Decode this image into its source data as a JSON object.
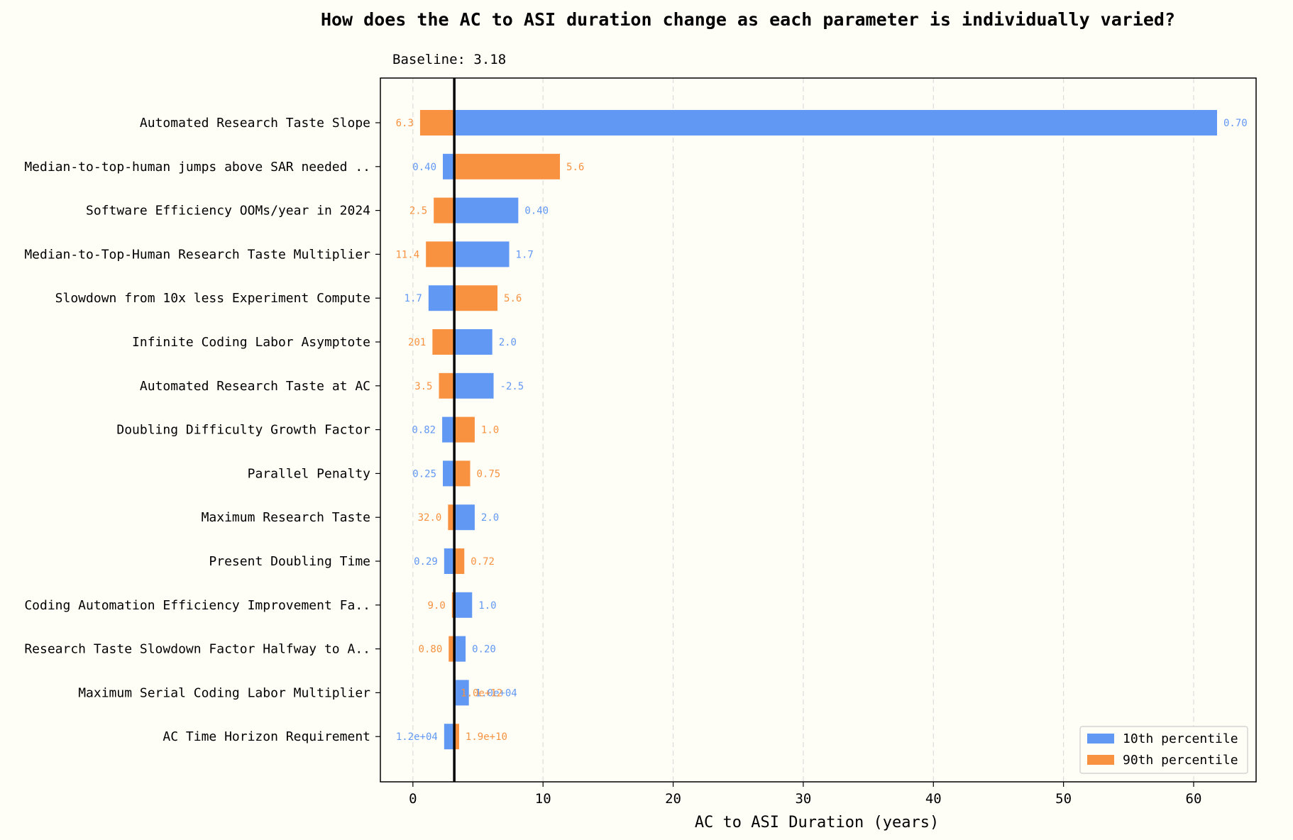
{
  "chart_data": {
    "type": "bar",
    "orientation": "horizontal",
    "title": "How does the AC to ASI duration change as each parameter is individually varied?",
    "subtitle": "Baseline: 3.18",
    "baseline": 3.18,
    "xlabel": "AC to ASI Duration (years)",
    "ylabel": "",
    "xlim": [
      -2.5,
      64.8
    ],
    "xticks": [
      0,
      10,
      20,
      30,
      40,
      50,
      60
    ],
    "grid": "x-dashed",
    "legend_position": "lower-right",
    "colors": {
      "p10": "#6198f4",
      "p90": "#f89240",
      "baseline": "#000000",
      "background": "#fffef6"
    },
    "legend": [
      {
        "key": "p10",
        "label": "10th percentile"
      },
      {
        "key": "p90",
        "label": "90th percentile"
      }
    ],
    "parameters": [
      {
        "name": "Automated Research Taste Slope",
        "p10": {
          "value": 61.8,
          "label": "0.70"
        },
        "p90": {
          "value": 0.55,
          "label": "6.3"
        }
      },
      {
        "name": "Median-to-top-human jumps above SAR needed ..",
        "p10": {
          "value": 2.3,
          "label": "0.40"
        },
        "p90": {
          "value": 11.3,
          "label": "5.6"
        }
      },
      {
        "name": "Software Efficiency OOMs/year in 2024",
        "p10": {
          "value": 8.1,
          "label": "0.40"
        },
        "p90": {
          "value": 1.6,
          "label": "2.5"
        }
      },
      {
        "name": "Median-to-Top-Human Research Taste Multiplier",
        "p10": {
          "value": 7.4,
          "label": "1.7"
        },
        "p90": {
          "value": 1.0,
          "label": "11.4"
        }
      },
      {
        "name": "Slowdown from 10x less Experiment Compute",
        "p10": {
          "value": 1.2,
          "label": "1.7"
        },
        "p90": {
          "value": 6.5,
          "label": "5.6"
        }
      },
      {
        "name": "Infinite Coding Labor Asymptote",
        "p10": {
          "value": 6.1,
          "label": "2.0"
        },
        "p90": {
          "value": 1.5,
          "label": "201"
        }
      },
      {
        "name": "Automated Research Taste at AC",
        "p10": {
          "value": 6.2,
          "label": "-2.5"
        },
        "p90": {
          "value": 2.0,
          "label": "3.5"
        }
      },
      {
        "name": "Doubling Difficulty Growth Factor",
        "p10": {
          "value": 2.25,
          "label": "0.82"
        },
        "p90": {
          "value": 4.75,
          "label": "1.0"
        }
      },
      {
        "name": "Parallel Penalty",
        "p10": {
          "value": 2.3,
          "label": "0.25"
        },
        "p90": {
          "value": 4.4,
          "label": "0.75"
        }
      },
      {
        "name": "Maximum Research Taste",
        "p10": {
          "value": 4.75,
          "label": "2.0"
        },
        "p90": {
          "value": 2.7,
          "label": "32.0"
        }
      },
      {
        "name": "Present Doubling Time",
        "p10": {
          "value": 2.4,
          "label": "0.29"
        },
        "p90": {
          "value": 3.95,
          "label": "0.72"
        }
      },
      {
        "name": "Coding Automation Efficiency Improvement Fa..",
        "p10": {
          "value": 4.55,
          "label": "1.0"
        },
        "p90": {
          "value": 3.0,
          "label": "9.0"
        }
      },
      {
        "name": "Research Taste Slowdown Factor Halfway to A..",
        "p10": {
          "value": 4.05,
          "label": "0.20"
        },
        "p90": {
          "value": 2.75,
          "label": "0.80"
        }
      },
      {
        "name": "Maximum Serial Coding Labor Multiplier",
        "p10": {
          "value": 4.3,
          "label": "1.0e+04"
        },
        "p90": {
          "value": 3.18,
          "label": "1.0e+12"
        }
      },
      {
        "name": "AC Time Horizon Requirement",
        "p10": {
          "value": 2.4,
          "label": "1.2e+04"
        },
        "p90": {
          "value": 3.55,
          "label": "1.9e+10"
        }
      }
    ]
  }
}
